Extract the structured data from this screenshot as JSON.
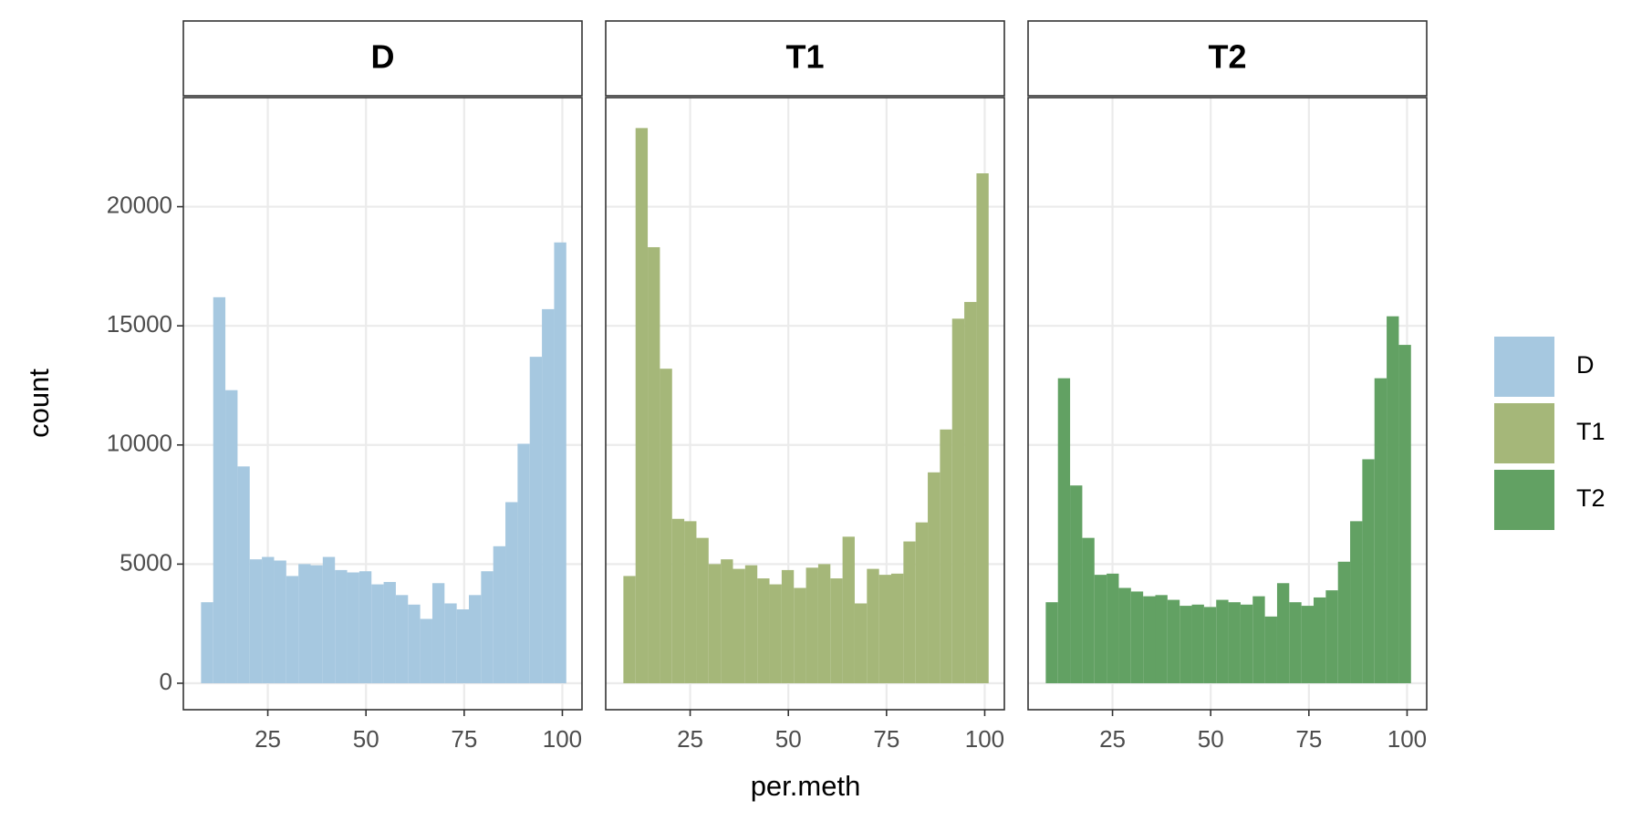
{
  "xlabel": "per.meth",
  "ylabel": "count",
  "legend_position": "right",
  "chart_data": [
    {
      "type": "histogram",
      "title": "D",
      "bins": [
        8,
        11.1,
        14.2,
        17.3,
        20.4,
        23.5,
        26.6,
        29.7,
        32.8,
        35.9,
        39,
        42.1,
        45.2,
        48.3,
        51.4,
        54.5,
        57.6,
        60.7,
        63.8,
        66.9,
        70,
        73.1,
        76.2,
        79.3,
        82.4,
        85.5,
        88.6,
        91.7,
        94.8,
        97.9,
        101
      ],
      "series": [
        {
          "name": "D",
          "color": "#a6c8e0",
          "values": [
            3400,
            16200,
            12300,
            9100,
            5200,
            5300,
            5150,
            4500,
            5000,
            4950,
            5300,
            4750,
            4650,
            4700,
            4150,
            4250,
            3700,
            3300,
            2700,
            4200,
            3350,
            3100,
            3700,
            4700,
            5750,
            7600,
            10050,
            13700,
            15700,
            18500
          ]
        }
      ],
      "xlim": [
        3.5,
        105
      ],
      "xticks": [
        25,
        50,
        75,
        100
      ],
      "ylim": [
        -1111,
        24578
      ],
      "yticks": [
        0,
        5000,
        10000,
        15000,
        20000
      ],
      "grid": true
    },
    {
      "type": "histogram",
      "title": "T1",
      "bins": [
        8,
        11.1,
        14.2,
        17.3,
        20.4,
        23.5,
        26.6,
        29.7,
        32.8,
        35.9,
        39,
        42.1,
        45.2,
        48.3,
        51.4,
        54.5,
        57.6,
        60.7,
        63.8,
        66.9,
        70,
        73.1,
        76.2,
        79.3,
        82.4,
        85.5,
        88.6,
        91.7,
        94.8,
        97.9,
        101
      ],
      "series": [
        {
          "name": "T1",
          "color": "#a5b779",
          "values": [
            4500,
            23300,
            18300,
            13200,
            6900,
            6800,
            6100,
            5000,
            5200,
            4800,
            4950,
            4400,
            4150,
            4750,
            4000,
            4850,
            5000,
            4400,
            6150,
            3350,
            4800,
            4550,
            4600,
            5950,
            6750,
            8850,
            10650,
            15300,
            16000,
            21400
          ]
        }
      ],
      "xlim": [
        3.5,
        105
      ],
      "xticks": [
        25,
        50,
        75,
        100
      ],
      "ylim": [
        -1111,
        24578
      ],
      "yticks": [
        0,
        5000,
        10000,
        15000,
        20000
      ],
      "grid": true
    },
    {
      "type": "histogram",
      "title": "T2",
      "bins": [
        8,
        11.1,
        14.2,
        17.3,
        20.4,
        23.5,
        26.6,
        29.7,
        32.8,
        35.9,
        39,
        42.1,
        45.2,
        48.3,
        51.4,
        54.5,
        57.6,
        60.7,
        63.8,
        66.9,
        70,
        73.1,
        76.2,
        79.3,
        82.4,
        85.5,
        88.6,
        91.7,
        94.8,
        97.9,
        101
      ],
      "series": [
        {
          "name": "T2",
          "color": "#62a163",
          "values": [
            3400,
            12800,
            8300,
            6100,
            4550,
            4600,
            4000,
            3850,
            3650,
            3700,
            3500,
            3250,
            3300,
            3200,
            3500,
            3400,
            3300,
            3650,
            2800,
            4200,
            3400,
            3250,
            3600,
            3900,
            5100,
            6800,
            9400,
            12800,
            15400,
            14200
          ]
        }
      ],
      "xlim": [
        3.5,
        105
      ],
      "xticks": [
        25,
        50,
        75,
        100
      ],
      "ylim": [
        -1111,
        24578
      ],
      "yticks": [
        0,
        5000,
        10000,
        15000,
        20000
      ],
      "grid": true
    }
  ]
}
